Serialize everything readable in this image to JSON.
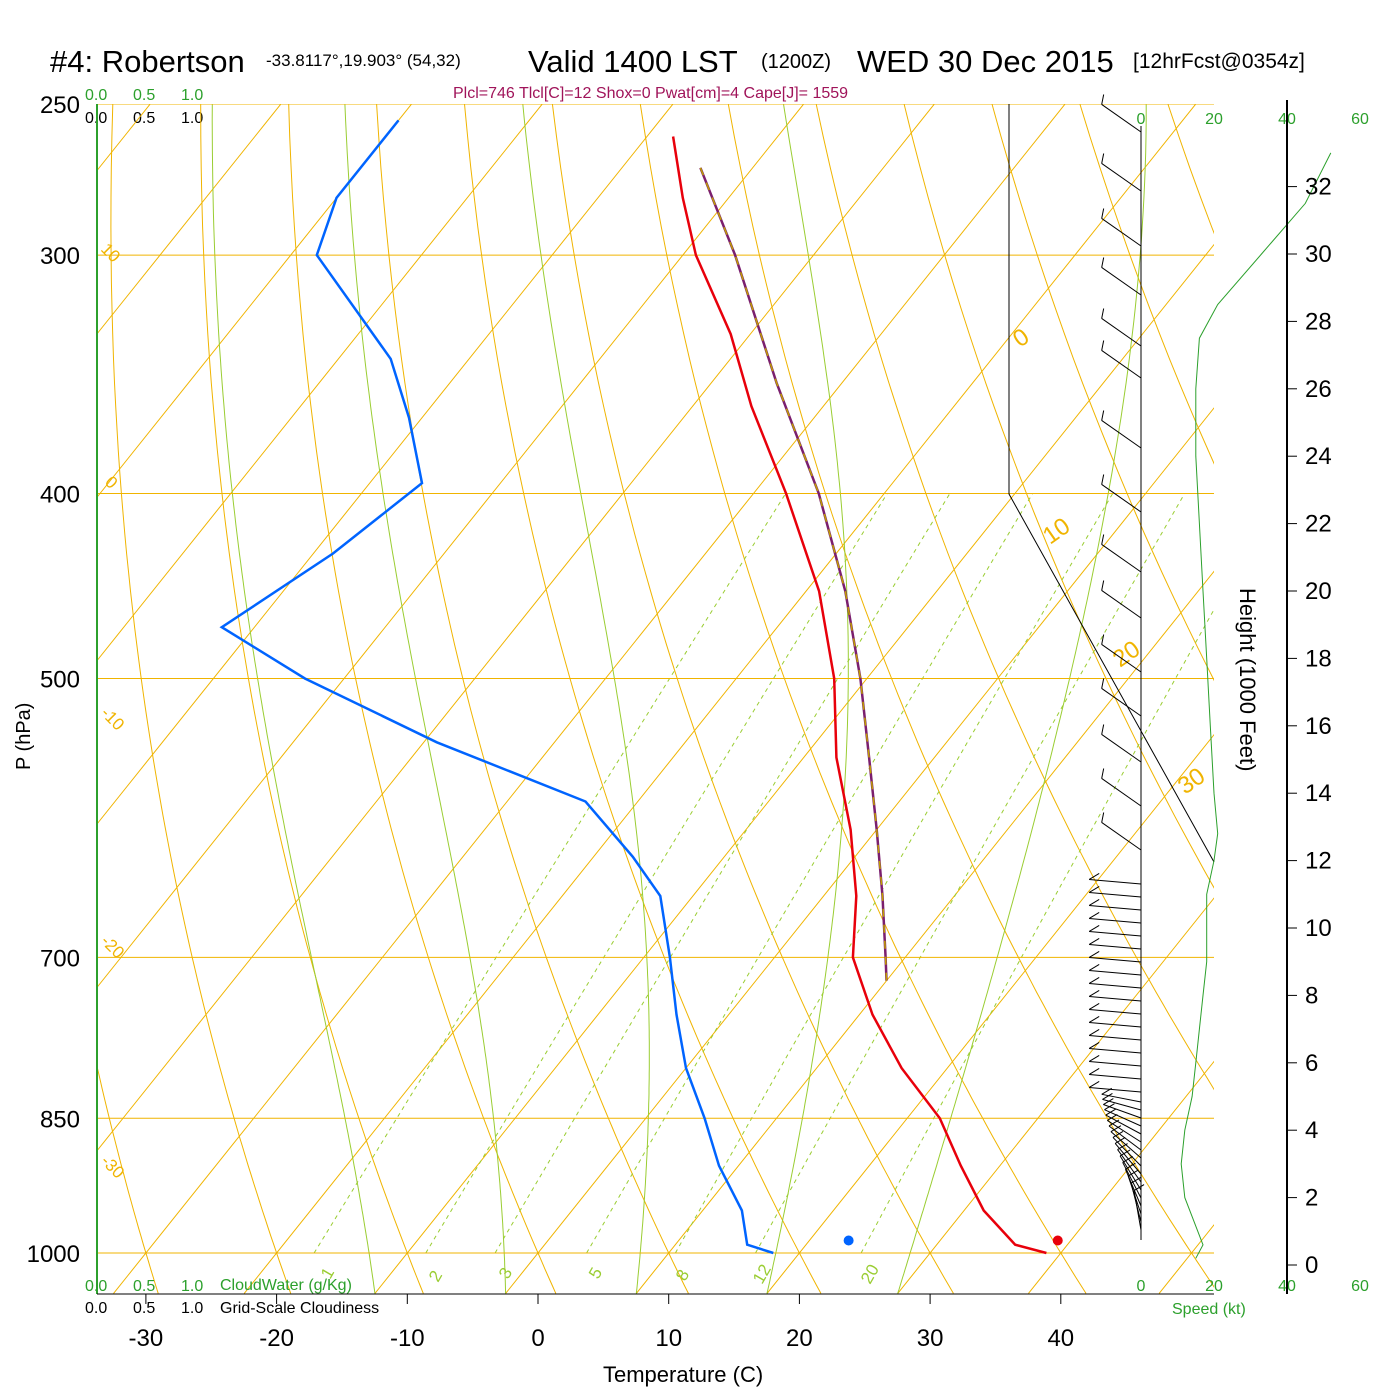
{
  "header": {
    "station": "#4: Robertson",
    "coords": "-33.8117°,19.903° (54,32)",
    "valid": "Valid 1400 LST",
    "zulu": "(1200Z)",
    "date": "WED 30 Dec 2015",
    "forecast": "[12hrFcst@0354z]",
    "indices": "Plcl=746 Tlcl[C]=12 Shox=0 Pwat[cm]=4 Cape[J]= 1559"
  },
  "colors": {
    "isobar": "#f0b400",
    "dry_adiabat": "#f0b400",
    "moist_adiabat": "#9acd32",
    "mixing_ratio": "#9acd32",
    "temperature": "#e8000b",
    "dewpoint": "#0064ff",
    "parcel": "#7b1f6e",
    "parcel_dash": "#c0a000",
    "green_label": "#2ca02c",
    "indices": "#a0145a",
    "wind_profile": "#2ca02c"
  },
  "labels": {
    "y_axis": "P (hPa)",
    "x_axis": "Temperature (C)",
    "height_axis": "Height (1000 Feet)",
    "speed_axis": "Speed (kt)",
    "cloud_water": "CloudWater (g/Kg)",
    "cloudiness": "Grid-Scale Cloudiness",
    "top_green_scale": [
      "0.0",
      "0.5",
      "1.0"
    ],
    "top_black_scale": [
      "0.0",
      "0.5",
      "1.0"
    ],
    "bottom_green_scale": [
      "0.0",
      "0.5",
      "1.0"
    ],
    "bottom_black_scale": [
      "0.0",
      "0.5",
      "1.0"
    ],
    "speed_ticks_top": [
      "0",
      "20",
      "40",
      "60"
    ],
    "speed_ticks_bottom": [
      "0",
      "20",
      "40",
      "60"
    ]
  },
  "chart_data": {
    "type": "skew-t",
    "title": "#4: Robertson",
    "xlabel": "Temperature (C)",
    "ylabel": "P (hPa)",
    "pressure_levels": [
      250,
      300,
      400,
      500,
      700,
      850,
      1000
    ],
    "temperature_ticks": [
      -30,
      -20,
      -10,
      0,
      10,
      20,
      30,
      40
    ],
    "height_ticks_kft": [
      0,
      2,
      4,
      6,
      8,
      10,
      12,
      14,
      16,
      18,
      20,
      22,
      24,
      26,
      28,
      30,
      32
    ],
    "dry_adiabat_labels": [
      "10",
      "0",
      "-10",
      "-20",
      "-30"
    ],
    "moist_adiabat_labels": [
      "0",
      "10",
      "20",
      "30"
    ],
    "mixing_ratio_labels": [
      "1",
      "2",
      "3",
      "5",
      "8",
      "12",
      "20"
    ],
    "temperature_profile": [
      {
        "p": 1000,
        "t": 38.9
      },
      {
        "p": 990,
        "t": 36.0
      },
      {
        "p": 950,
        "t": 31.5
      },
      {
        "p": 900,
        "t": 27.0
      },
      {
        "p": 850,
        "t": 22.5
      },
      {
        "p": 800,
        "t": 16.5
      },
      {
        "p": 750,
        "t": 11.0
      },
      {
        "p": 700,
        "t": 6.0
      },
      {
        "p": 650,
        "t": 2.5
      },
      {
        "p": 600,
        "t": -2.0
      },
      {
        "p": 550,
        "t": -7.5
      },
      {
        "p": 500,
        "t": -12.5
      },
      {
        "p": 450,
        "t": -19.0
      },
      {
        "p": 400,
        "t": -27.5
      },
      {
        "p": 360,
        "t": -35.5
      },
      {
        "p": 330,
        "t": -41.5
      },
      {
        "p": 300,
        "t": -49.0
      },
      {
        "p": 280,
        "t": -53.5
      },
      {
        "p": 260,
        "t": -58.0
      }
    ],
    "dewpoint_profile": [
      {
        "p": 1000,
        "d": 18.0
      },
      {
        "p": 990,
        "d": 15.5
      },
      {
        "p": 950,
        "d": 13.0
      },
      {
        "p": 900,
        "d": 8.5
      },
      {
        "p": 850,
        "d": 4.5
      },
      {
        "p": 800,
        "d": 0.0
      },
      {
        "p": 750,
        "d": -4.0
      },
      {
        "p": 700,
        "d": -8.0
      },
      {
        "p": 650,
        "d": -12.5
      },
      {
        "p": 620,
        "d": -17.0
      },
      {
        "p": 580,
        "d": -24.0
      },
      {
        "p": 540,
        "d": -39.0
      },
      {
        "p": 500,
        "d": -53.0
      },
      {
        "p": 470,
        "d": -62.5
      },
      {
        "p": 430,
        "d": -58.5
      },
      {
        "p": 395,
        "d": -56.0
      },
      {
        "p": 365,
        "d": -61.0
      },
      {
        "p": 340,
        "d": -66.0
      },
      {
        "p": 300,
        "d": -78.0
      },
      {
        "p": 280,
        "d": -80.0
      },
      {
        "p": 255,
        "d": -80.0
      }
    ],
    "parcel_profile": [
      {
        "p": 720,
        "t": 10.0
      },
      {
        "p": 700,
        "t": 8.5
      },
      {
        "p": 650,
        "t": 4.5
      },
      {
        "p": 600,
        "t": 0.0
      },
      {
        "p": 550,
        "t": -5.0
      },
      {
        "p": 500,
        "t": -10.5
      },
      {
        "p": 450,
        "t": -17.0
      },
      {
        "p": 400,
        "t": -25.0
      },
      {
        "p": 350,
        "t": -35.0
      },
      {
        "p": 300,
        "t": -46.0
      },
      {
        "p": 270,
        "t": -54.0
      }
    ],
    "surface": {
      "t": 39.0,
      "d": 23.0
    },
    "wind_speed_profile_kt": [
      {
        "h": 0.2,
        "s": 15
      },
      {
        "h": 0.6,
        "s": 17
      },
      {
        "h": 2.0,
        "s": 12
      },
      {
        "h": 3.0,
        "s": 11
      },
      {
        "h": 4.0,
        "s": 12
      },
      {
        "h": 5.0,
        "s": 14
      },
      {
        "h": 6.0,
        "s": 15
      },
      {
        "h": 7.0,
        "s": 16
      },
      {
        "h": 8.0,
        "s": 17
      },
      {
        "h": 9.0,
        "s": 18
      },
      {
        "h": 10.0,
        "s": 18
      },
      {
        "h": 11.0,
        "s": 18
      },
      {
        "h": 12.0,
        "s": 20
      },
      {
        "h": 12.8,
        "s": 21
      },
      {
        "h": 14.0,
        "s": 20
      },
      {
        "h": 16.0,
        "s": 19
      },
      {
        "h": 18.0,
        "s": 18
      },
      {
        "h": 20.0,
        "s": 17
      },
      {
        "h": 22.0,
        "s": 16
      },
      {
        "h": 24.0,
        "s": 15
      },
      {
        "h": 26.0,
        "s": 15
      },
      {
        "h": 27.5,
        "s": 16
      },
      {
        "h": 28.5,
        "s": 21
      },
      {
        "h": 30.0,
        "s": 33
      },
      {
        "h": 31.5,
        "s": 45
      },
      {
        "h": 33.0,
        "s": 52
      }
    ]
  }
}
